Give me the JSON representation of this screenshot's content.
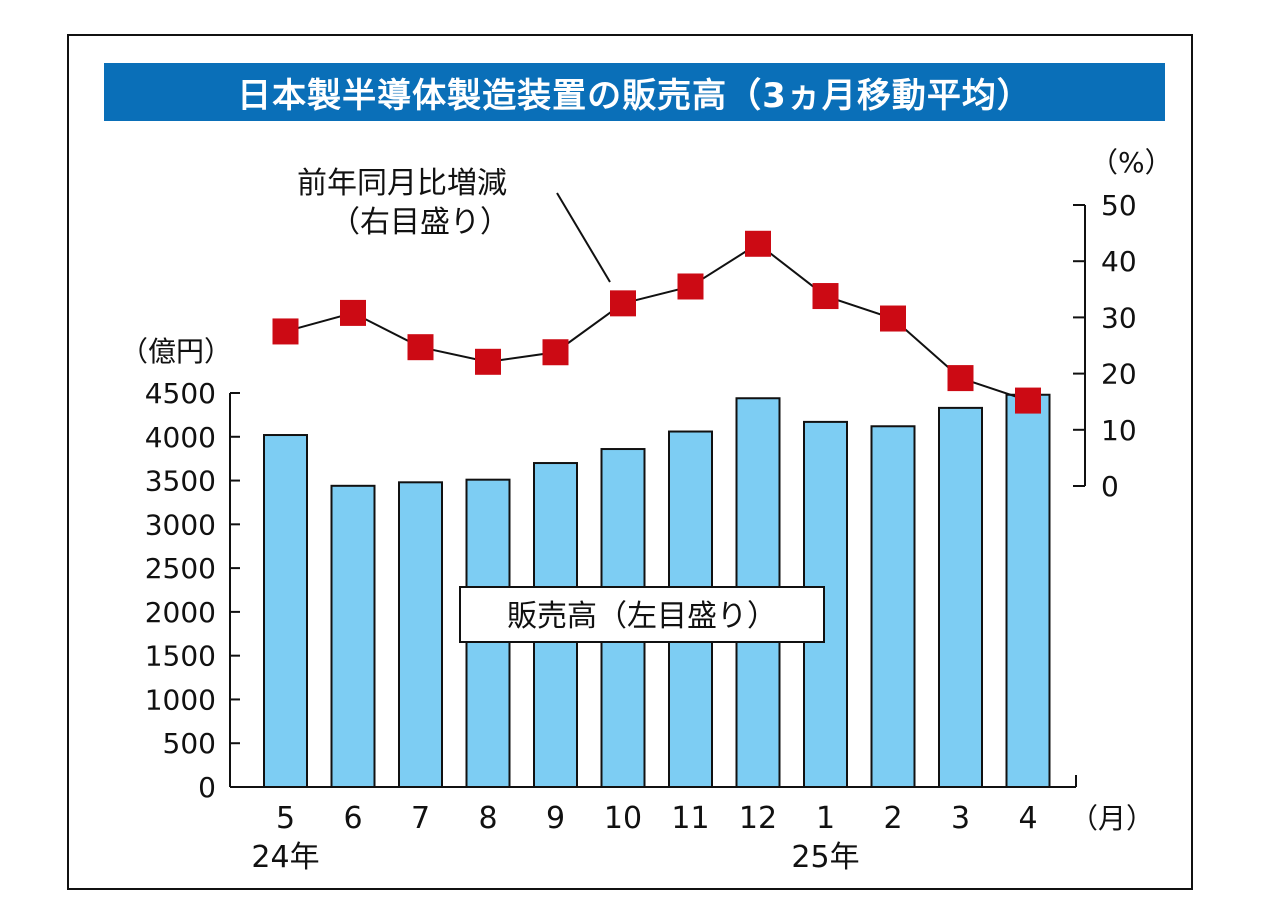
{
  "colors": {
    "title_bg": "#0a6fb8",
    "title_text": "#ffffff",
    "bar_fill": "#7dcdf3",
    "bar_stroke": "#111111",
    "marker": "#cc0a14",
    "line": "#111111"
  },
  "chart_data": {
    "type": "bar",
    "title": "日本製半導体製造装置の販売高（3ヵ月移動平均）",
    "categories": [
      "5",
      "6",
      "7",
      "8",
      "9",
      "10",
      "11",
      "12",
      "1",
      "2",
      "3",
      "4"
    ],
    "x_unit": "（月）",
    "year_labels": [
      {
        "label": "24年",
        "category": "5"
      },
      {
        "label": "25年",
        "category": "1"
      }
    ],
    "left_axis": {
      "unit": "（億円）",
      "ylim": [
        0,
        4500
      ],
      "ticks": [
        "0",
        "500",
        "1000",
        "1500",
        "2000",
        "2500",
        "3000",
        "3500",
        "4000",
        "4500"
      ]
    },
    "right_axis": {
      "unit": "（%）",
      "ylim": [
        0,
        50
      ],
      "ticks": [
        "0",
        "10",
        "20",
        "30",
        "40",
        "50"
      ]
    },
    "series": [
      {
        "name": "販売高（左目盛り）",
        "type": "bar",
        "axis": "left",
        "values": [
          4020,
          3440,
          3480,
          3510,
          3700,
          3860,
          4060,
          4440,
          4170,
          4120,
          4330,
          4480
        ]
      },
      {
        "name": "前年同月比増減\n（右目盛り）",
        "type": "line",
        "axis": "right",
        "values": [
          27.5,
          30.8,
          24.7,
          22.1,
          23.8,
          32.5,
          35.5,
          43.1,
          33.8,
          29.8,
          19.2,
          15.2
        ]
      }
    ],
    "grid": false
  }
}
